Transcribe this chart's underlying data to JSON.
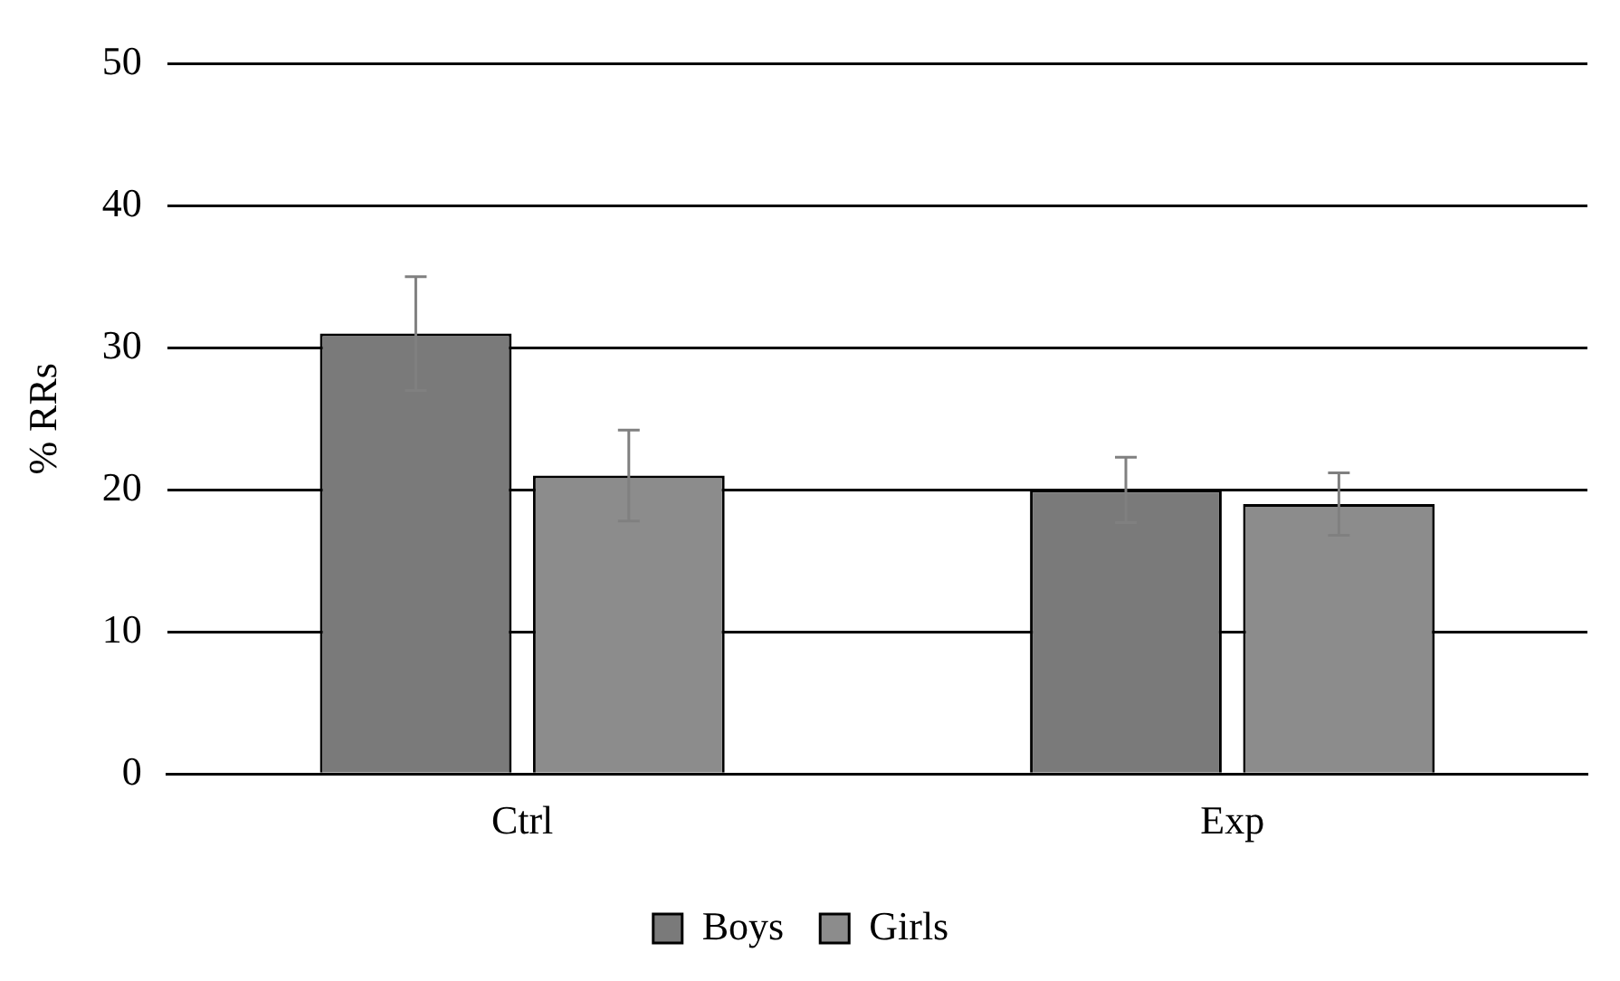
{
  "chart_data": {
    "type": "bar",
    "ylabel": "% RRs",
    "categories": [
      "Ctrl",
      "Exp"
    ],
    "series": [
      {
        "name": "Boys",
        "color": "#7a7a7a",
        "values": [
          31,
          20
        ],
        "errors": [
          4,
          2.3
        ]
      },
      {
        "name": "Girls",
        "color": "#8c8c8c",
        "values": [
          21,
          19
        ],
        "errors": [
          3.2,
          2.2
        ]
      }
    ],
    "ylim": [
      0,
      50
    ],
    "yticks": [
      0,
      10,
      20,
      30,
      40,
      50
    ],
    "grid": "y",
    "legend": "bottom"
  }
}
